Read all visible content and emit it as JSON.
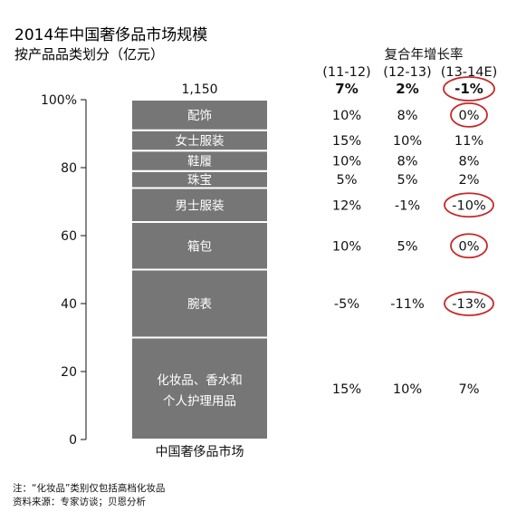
{
  "chart_data": {
    "type": "bar",
    "stacked": true,
    "title": "2014年中国奢侈品市场规模",
    "subtitle": "按产品品类划分（亿元）",
    "categories": [
      "中国奢侈品市场"
    ],
    "total_label": "1,150",
    "ylim": [
      0,
      100
    ],
    "yticks": [
      "0",
      "20",
      "40",
      "60",
      "80",
      "100%"
    ],
    "series": [
      {
        "name": "化妆品、香水和个人护理用品",
        "value_pct": 30
      },
      {
        "name": "腕表",
        "value_pct": 20
      },
      {
        "name": "箱包",
        "value_pct": 14
      },
      {
        "name": "男士服装",
        "value_pct": 10
      },
      {
        "name": "珠宝",
        "value_pct": 5
      },
      {
        "name": "鞋履",
        "value_pct": 6
      },
      {
        "name": "女士服装",
        "value_pct": 6
      },
      {
        "name": "配饰",
        "value_pct": 9
      }
    ],
    "cagr_table": {
      "header": "复合年增长率",
      "columns": [
        "(11-12)",
        "(12-13)",
        "(13-14E)"
      ],
      "total_row": [
        "7%",
        "2%",
        "-1%"
      ],
      "rows": [
        {
          "segment": "配饰",
          "values": [
            "10%",
            "8%",
            "0%"
          ]
        },
        {
          "segment": "女士服装",
          "values": [
            "15%",
            "10%",
            "11%"
          ]
        },
        {
          "segment": "鞋履",
          "values": [
            "10%",
            "8%",
            "8%"
          ]
        },
        {
          "segment": "珠宝",
          "values": [
            "5%",
            "5%",
            "2%"
          ]
        },
        {
          "segment": "男士服装",
          "values": [
            "12%",
            "-1%",
            "-10%"
          ]
        },
        {
          "segment": "箱包",
          "values": [
            "10%",
            "5%",
            "0%"
          ]
        },
        {
          "segment": "腕表",
          "values": [
            "-5%",
            "-11%",
            "-13%"
          ]
        },
        {
          "segment": "化妆品、香水和个人护理用品",
          "values": [
            "15%",
            "10%",
            "7%"
          ]
        }
      ],
      "circled": [
        "-1%",
        "-10%",
        "0%",
        "-13%"
      ]
    }
  },
  "colors": {
    "bar": "#767676",
    "separator": "#ffffff",
    "circle": "#c62828"
  },
  "footnotes": {
    "note": "注：“化妆品”类别仅包括高档化妆品",
    "source": "资料来源：专家访谈；贝恩分析"
  }
}
